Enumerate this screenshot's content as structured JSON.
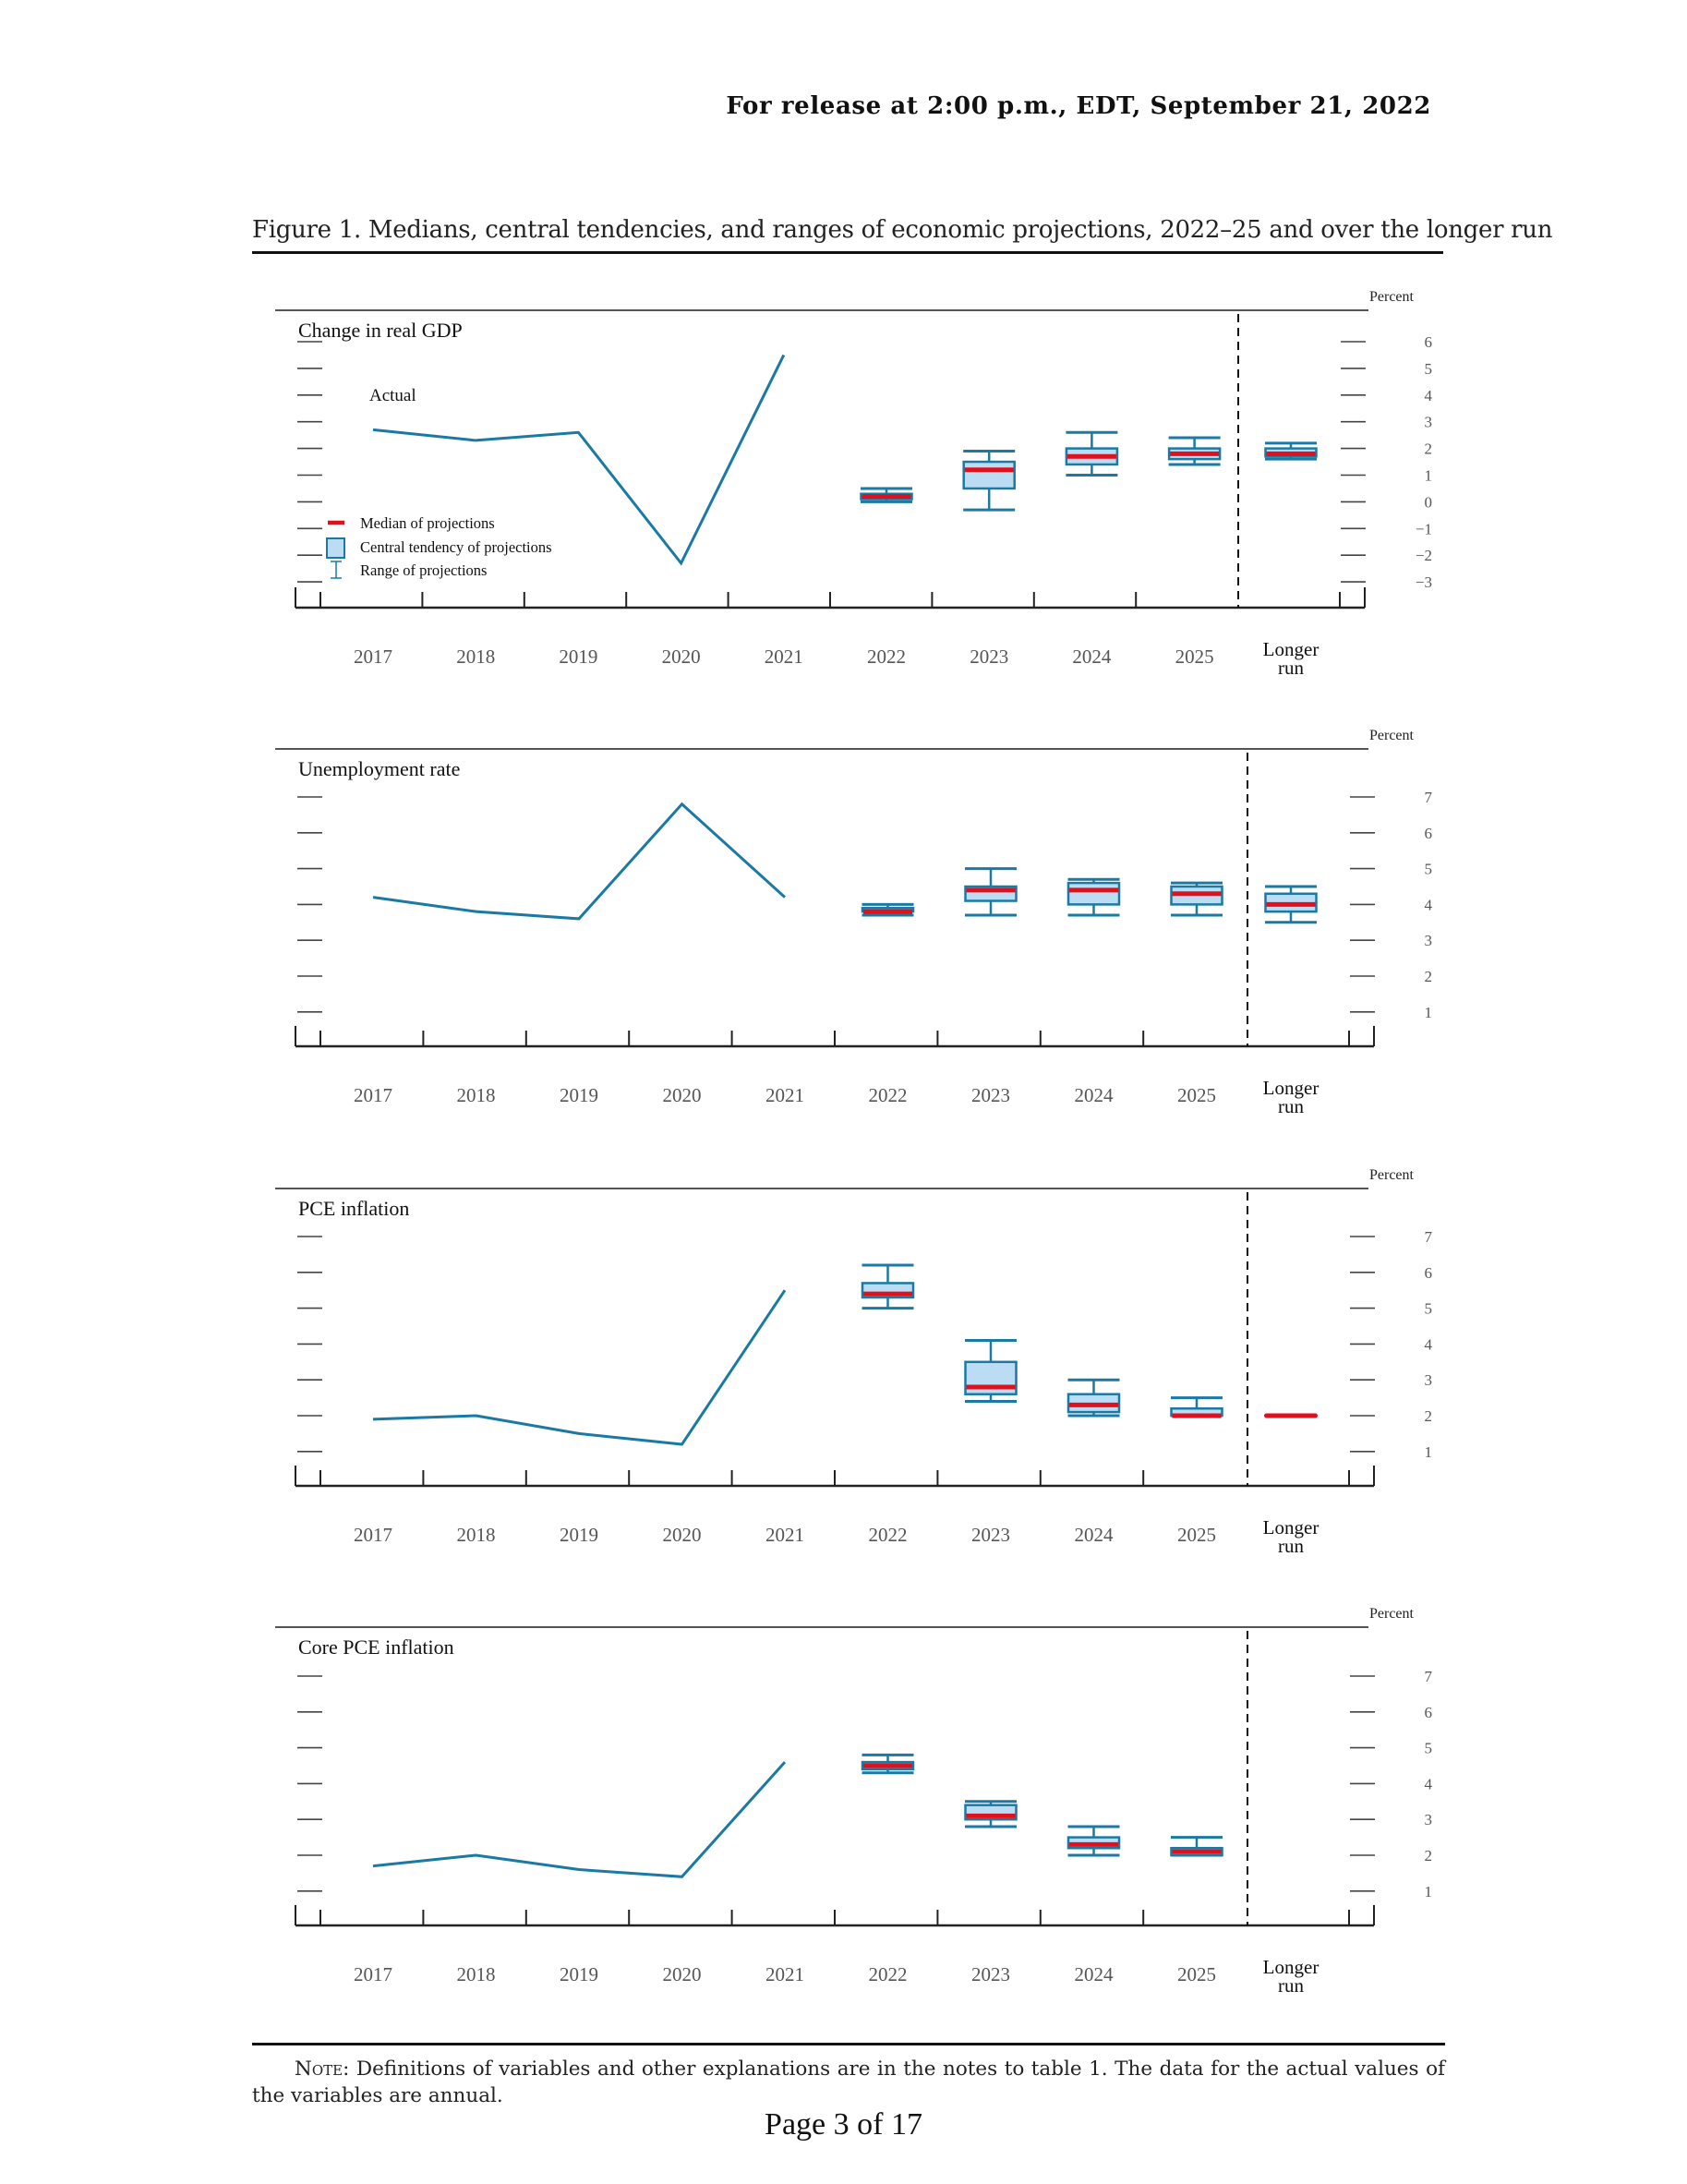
{
  "header": {
    "release": "For release at 2:00 p.m., EDT, September 21, 2022"
  },
  "figure": {
    "title": "Figure 1. Medians, central tendencies, and ranges of economic projections, 2022–25 and over the longer run"
  },
  "colors": {
    "actual_line": "#1a7aa3",
    "box_fill": "#bcdcf4",
    "box_stroke": "#1a7aa3",
    "median": "#e0101c",
    "axis": "#222222",
    "tick_label": "#555555"
  },
  "legend": {
    "median": "Median of projections",
    "central_tendency": "Central tendency of projections",
    "range": "Range of projections"
  },
  "chart_data": [
    {
      "type": "line+box",
      "title": "Change in real GDP",
      "unit_label": "Percent",
      "actual_label": "Actual",
      "categories": [
        "2017",
        "2018",
        "2019",
        "2020",
        "2021",
        "2022",
        "2023",
        "2024",
        "2025",
        "Longer run"
      ],
      "yticks": [
        6,
        5,
        4,
        3,
        2,
        1,
        0,
        -1,
        -2,
        -3
      ],
      "ytick_labels": [
        "6",
        "5",
        "4",
        "3",
        "2",
        "1",
        "0",
        "−1",
        "−2",
        "−3"
      ],
      "ylim": [
        -3,
        6
      ],
      "actual": {
        "x": [
          "2017",
          "2018",
          "2019",
          "2020",
          "2021"
        ],
        "values": [
          2.7,
          2.3,
          2.6,
          -2.3,
          5.5
        ]
      },
      "projections": [
        {
          "x": "2022",
          "range_low": 0.0,
          "range_high": 0.5,
          "ct_low": 0.1,
          "ct_high": 0.3,
          "median": 0.2
        },
        {
          "x": "2023",
          "range_low": -0.3,
          "range_high": 1.9,
          "ct_low": 0.5,
          "ct_high": 1.5,
          "median": 1.2
        },
        {
          "x": "2024",
          "range_low": 1.0,
          "range_high": 2.6,
          "ct_low": 1.4,
          "ct_high": 2.0,
          "median": 1.7
        },
        {
          "x": "2025",
          "range_low": 1.4,
          "range_high": 2.4,
          "ct_low": 1.6,
          "ct_high": 2.0,
          "median": 1.8
        },
        {
          "x": "Longer run",
          "range_low": 1.6,
          "range_high": 2.2,
          "ct_low": 1.7,
          "ct_high": 2.0,
          "median": 1.8
        }
      ],
      "legend_placement": "bottom-left"
    },
    {
      "type": "line+box",
      "title": "Unemployment rate",
      "unit_label": "Percent",
      "categories": [
        "2017",
        "2018",
        "2019",
        "2020",
        "2021",
        "2022",
        "2023",
        "2024",
        "2025",
        "Longer run"
      ],
      "yticks": [
        7,
        6,
        5,
        4,
        3,
        2,
        1
      ],
      "ytick_labels": [
        "7",
        "6",
        "5",
        "4",
        "3",
        "2",
        "1"
      ],
      "ylim": [
        1,
        7
      ],
      "actual": {
        "x": [
          "2017",
          "2018",
          "2019",
          "2020",
          "2021"
        ],
        "values": [
          4.2,
          3.8,
          3.6,
          6.8,
          4.2
        ]
      },
      "projections": [
        {
          "x": "2022",
          "range_low": 3.7,
          "range_high": 4.0,
          "ct_low": 3.8,
          "ct_high": 3.9,
          "median": 3.8
        },
        {
          "x": "2023",
          "range_low": 3.7,
          "range_high": 5.0,
          "ct_low": 4.1,
          "ct_high": 4.5,
          "median": 4.4
        },
        {
          "x": "2024",
          "range_low": 3.7,
          "range_high": 4.7,
          "ct_low": 4.0,
          "ct_high": 4.6,
          "median": 4.4
        },
        {
          "x": "2025",
          "range_low": 3.7,
          "range_high": 4.6,
          "ct_low": 4.0,
          "ct_high": 4.5,
          "median": 4.3
        },
        {
          "x": "Longer run",
          "range_low": 3.5,
          "range_high": 4.5,
          "ct_low": 3.8,
          "ct_high": 4.3,
          "median": 4.0
        }
      ]
    },
    {
      "type": "line+box",
      "title": "PCE inflation",
      "unit_label": "Percent",
      "categories": [
        "2017",
        "2018",
        "2019",
        "2020",
        "2021",
        "2022",
        "2023",
        "2024",
        "2025",
        "Longer run"
      ],
      "yticks": [
        7,
        6,
        5,
        4,
        3,
        2,
        1
      ],
      "ytick_labels": [
        "7",
        "6",
        "5",
        "4",
        "3",
        "2",
        "1"
      ],
      "ylim": [
        1,
        7
      ],
      "actual": {
        "x": [
          "2017",
          "2018",
          "2019",
          "2020",
          "2021"
        ],
        "values": [
          1.9,
          2.0,
          1.5,
          1.2,
          5.5
        ]
      },
      "projections": [
        {
          "x": "2022",
          "range_low": 5.0,
          "range_high": 6.2,
          "ct_low": 5.3,
          "ct_high": 5.7,
          "median": 5.4
        },
        {
          "x": "2023",
          "range_low": 2.4,
          "range_high": 4.1,
          "ct_low": 2.6,
          "ct_high": 3.5,
          "median": 2.8
        },
        {
          "x": "2024",
          "range_low": 2.0,
          "range_high": 3.0,
          "ct_low": 2.1,
          "ct_high": 2.6,
          "median": 2.3
        },
        {
          "x": "2025",
          "range_low": 2.0,
          "range_high": 2.5,
          "ct_low": 2.0,
          "ct_high": 2.2,
          "median": 2.0
        },
        {
          "x": "Longer run",
          "range_low": 2.0,
          "range_high": 2.0,
          "ct_low": 2.0,
          "ct_high": 2.0,
          "median": 2.0
        }
      ]
    },
    {
      "type": "line+box",
      "title": "Core PCE inflation",
      "unit_label": "Percent",
      "categories": [
        "2017",
        "2018",
        "2019",
        "2020",
        "2021",
        "2022",
        "2023",
        "2024",
        "2025",
        "Longer run"
      ],
      "yticks": [
        7,
        6,
        5,
        4,
        3,
        2,
        1
      ],
      "ytick_labels": [
        "7",
        "6",
        "5",
        "4",
        "3",
        "2",
        "1"
      ],
      "ylim": [
        1,
        7
      ],
      "actual": {
        "x": [
          "2017",
          "2018",
          "2019",
          "2020",
          "2021"
        ],
        "values": [
          1.7,
          2.0,
          1.6,
          1.4,
          4.6
        ]
      },
      "projections": [
        {
          "x": "2022",
          "range_low": 4.3,
          "range_high": 4.8,
          "ct_low": 4.4,
          "ct_high": 4.6,
          "median": 4.5
        },
        {
          "x": "2023",
          "range_low": 2.8,
          "range_high": 3.5,
          "ct_low": 3.0,
          "ct_high": 3.4,
          "median": 3.1
        },
        {
          "x": "2024",
          "range_low": 2.0,
          "range_high": 2.8,
          "ct_low": 2.2,
          "ct_high": 2.5,
          "median": 2.3
        },
        {
          "x": "2025",
          "range_low": 2.0,
          "range_high": 2.5,
          "ct_low": 2.0,
          "ct_high": 2.2,
          "median": 2.1
        },
        {
          "x": "Longer run",
          "range_low": null,
          "range_high": null,
          "ct_low": null,
          "ct_high": null,
          "median": null
        }
      ]
    }
  ],
  "note": {
    "label": "Note:",
    "text": "Definitions of variables and other explanations are in the notes to table 1. The data for the actual values of the variables are annual."
  },
  "footer": {
    "page": "Page 3 of 17"
  }
}
